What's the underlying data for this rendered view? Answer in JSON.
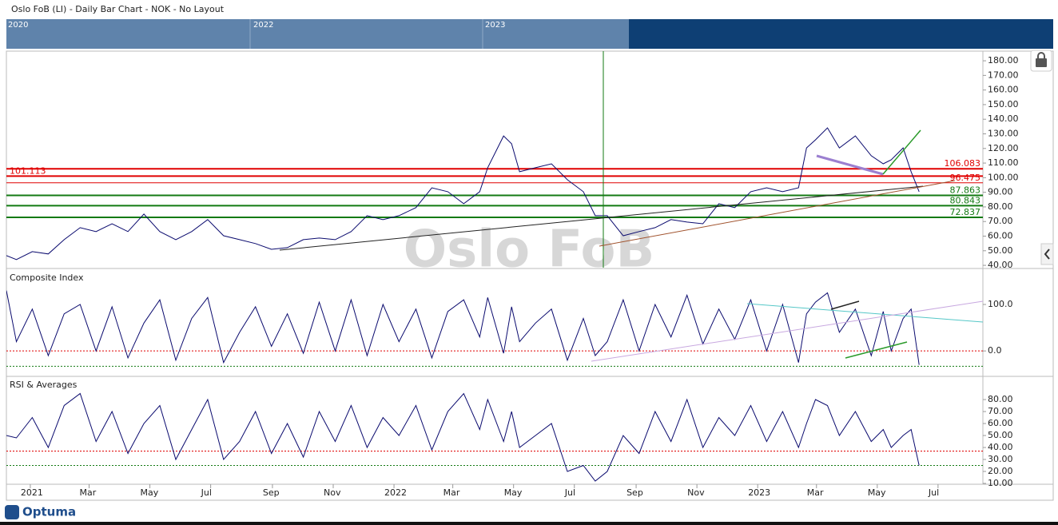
{
  "chart_data": {
    "type": "line",
    "title": "Oslo FoB (LI) - Daily Bar Chart - NOK - No Layout",
    "watermark": "Oslo FoB",
    "logo": "Optuma",
    "navigator_labels": [
      "2020",
      "2022",
      "2023"
    ],
    "xlim": [
      -24,
      956
    ],
    "xticks": [
      {
        "value": 0,
        "label": "2021"
      },
      {
        "value": 59,
        "label": "Mar"
      },
      {
        "value": 120,
        "label": "May"
      },
      {
        "value": 181,
        "label": "Jul"
      },
      {
        "value": 243,
        "label": "Sep"
      },
      {
        "value": 304,
        "label": "Nov"
      },
      {
        "value": 365,
        "label": "2022"
      },
      {
        "value": 424,
        "label": "Mar"
      },
      {
        "value": 485,
        "label": "May"
      },
      {
        "value": 546,
        "label": "Jul"
      },
      {
        "value": 608,
        "label": "Sep"
      },
      {
        "value": 669,
        "label": "Nov"
      },
      {
        "value": 730,
        "label": "2023"
      },
      {
        "value": 789,
        "label": "Mar"
      },
      {
        "value": 850,
        "label": "May"
      },
      {
        "value": 911,
        "label": "Jul"
      }
    ],
    "x": [
      -24,
      -14,
      2,
      18,
      34,
      50,
      66,
      82,
      98,
      114,
      130,
      146,
      162,
      178,
      194,
      210,
      226,
      242,
      258,
      274,
      290,
      306,
      322,
      338,
      354,
      370,
      387,
      403,
      419,
      435,
      451,
      459,
      475,
      483,
      491,
      507,
      523,
      539,
      555,
      567,
      579,
      595,
      611,
      627,
      643,
      659,
      675,
      691,
      707,
      723,
      739,
      755,
      771,
      779,
      788,
      800,
      812,
      828,
      844,
      856,
      864,
      876,
      884,
      892
    ],
    "panels": [
      {
        "ylim": [
          38.4,
          186.6
        ],
        "yticks": [
          {
            "value": 40,
            "label": "40.00"
          },
          {
            "value": 50,
            "label": "50.00"
          },
          {
            "value": 60,
            "label": "60.00"
          },
          {
            "value": 70,
            "label": "70.00"
          },
          {
            "value": 80,
            "label": "80.00"
          },
          {
            "value": 90,
            "label": "90.00"
          },
          {
            "value": 100,
            "label": "100.00"
          },
          {
            "value": 110,
            "label": "110.00"
          },
          {
            "value": 120,
            "label": "120.00"
          },
          {
            "value": 130,
            "label": "130.00"
          },
          {
            "value": 140,
            "label": "140.00"
          },
          {
            "value": 150,
            "label": "150.00"
          },
          {
            "value": 160,
            "label": "160.00"
          },
          {
            "value": 170,
            "label": "170.00"
          },
          {
            "value": 180,
            "label": "180.00"
          }
        ],
        "levels": [
          {
            "value": 106.083,
            "label": "106.083",
            "color": "#e00000",
            "side": "right"
          },
          {
            "value": 101.113,
            "label": "101.113",
            "color": "#e00000",
            "side": "left"
          },
          {
            "value": 96.475,
            "label": "96.475",
            "color": "#e00000",
            "side": "right"
          },
          {
            "value": 87.863,
            "label": "87.863",
            "color": "#137a13",
            "side": "right"
          },
          {
            "value": 80.843,
            "label": "80.843",
            "color": "#137a13",
            "side": "right"
          },
          {
            "value": 72.837,
            "label": "72.837",
            "color": "#137a13",
            "side": "right"
          }
        ],
        "series": [
          {
            "color": "#0a0a6e",
            "values": [
              46.7,
              44.0,
              49.4,
              47.8,
              57.6,
              65.8,
              63.1,
              68.5,
              63.1,
              75.1,
              63.1,
              57.6,
              63.1,
              71.3,
              60.3,
              57.6,
              54.9,
              51.0,
              52.1,
              57.6,
              58.7,
              57.6,
              63.1,
              74.0,
              71.3,
              74.0,
              79.5,
              93.1,
              90.4,
              82.2,
              90.4,
              106.8,
              128.6,
              123.2,
              104.1,
              106.8,
              109.5,
              98.6,
              90.4,
              74.0,
              74.0,
              60.3,
              63.1,
              65.8,
              71.3,
              69.6,
              68.5,
              82.2,
              79.5,
              90.4,
              93.1,
              90.4,
              93.1,
              120.4,
              125.9,
              134.1,
              120.4,
              128.6,
              115.0,
              109.5,
              112.2,
              120.4,
              104.1,
              90.4
            ]
          }
        ]
      },
      {
        "title": "Composite Index",
        "ylim": [
          -53,
          174
        ],
        "yticks": [
          {
            "value": 100,
            "label": "100.0"
          },
          {
            "value": 0,
            "label": "0.0"
          }
        ],
        "guides": [
          {
            "value": 0,
            "color": "#e00000"
          },
          {
            "value": -33,
            "color": "#137a13"
          }
        ],
        "series": [
          {
            "color": "#0a0a6e",
            "values": [
              130,
              20,
              90,
              -10,
              80,
              100,
              0,
              95,
              -15,
              60,
              110,
              -20,
              70,
              115,
              -25,
              40,
              95,
              10,
              80,
              -5,
              105,
              0,
              110,
              -10,
              100,
              20,
              90,
              -15,
              85,
              110,
              30,
              115,
              -5,
              95,
              20,
              60,
              90,
              -20,
              70,
              -10,
              20,
              110,
              0,
              100,
              30,
              120,
              15,
              90,
              25,
              110,
              0,
              100,
              -25,
              80,
              105,
              125,
              40,
              90,
              -10,
              85,
              0,
              70,
              90,
              -30
            ]
          }
        ]
      },
      {
        "title": "RSI & Averages",
        "ylim": [
          9.3,
          98.7
        ],
        "yticks": [
          {
            "value": 10,
            "label": "10.00"
          },
          {
            "value": 20,
            "label": "20.00"
          },
          {
            "value": 30,
            "label": "30.00"
          },
          {
            "value": 40,
            "label": "40.00"
          },
          {
            "value": 50,
            "label": "50.00"
          },
          {
            "value": 60,
            "label": "60.00"
          },
          {
            "value": 70,
            "label": "70.00"
          },
          {
            "value": 80,
            "label": "80.00"
          }
        ],
        "guides": [
          {
            "value": 37,
            "color": "#e00000"
          },
          {
            "value": 25,
            "color": "#137a13"
          }
        ],
        "series": [
          {
            "color": "#0a0a6e",
            "values": [
              50,
              48,
              65,
              40,
              75,
              85,
              45,
              70,
              35,
              60,
              75,
              30,
              55,
              80,
              30,
              45,
              70,
              35,
              60,
              32,
              70,
              45,
              75,
              40,
              65,
              50,
              75,
              38,
              70,
              85,
              55,
              80,
              45,
              70,
              40,
              50,
              60,
              20,
              25,
              12,
              20,
              50,
              35,
              70,
              45,
              80,
              40,
              65,
              50,
              75,
              45,
              70,
              40,
              60,
              80,
              75,
              50,
              70,
              45,
              55,
              40,
              50,
              55,
              25
            ]
          }
        ]
      }
    ]
  }
}
